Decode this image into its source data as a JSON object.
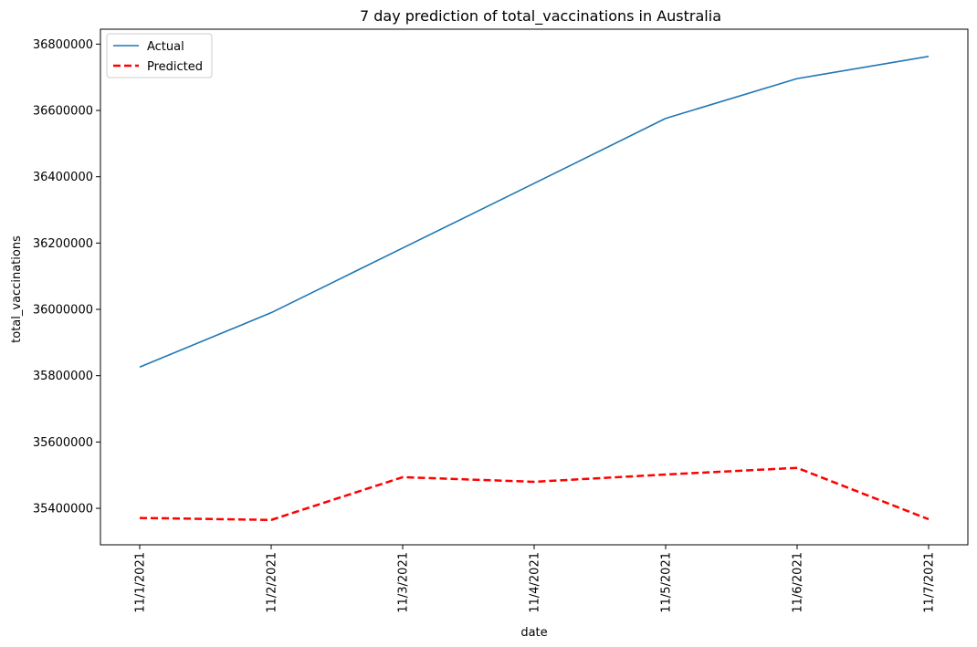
{
  "chart_data": {
    "type": "line",
    "title": "7 day prediction of total_vaccinations in Australia",
    "xlabel": "date",
    "ylabel": "total_vaccinations",
    "categories": [
      "11/1/2021",
      "11/2/2021",
      "11/3/2021",
      "11/4/2021",
      "11/5/2021",
      "11/6/2021",
      "11/7/2021"
    ],
    "yticks": [
      35400000,
      35600000,
      35800000,
      36000000,
      36200000,
      36400000,
      36600000,
      36800000
    ],
    "ylim": [
      35290000,
      36845000
    ],
    "grid": false,
    "legend_position": "top-left",
    "series": [
      {
        "name": "Actual",
        "values": [
          35826000,
          35990000,
          36185000,
          36380000,
          36576000,
          36696000,
          36763000
        ],
        "color": "#1f77b4",
        "style": "solid"
      },
      {
        "name": "Predicted",
        "values": [
          35371000,
          35365000,
          35494000,
          35480000,
          35502000,
          35522000,
          35367000
        ],
        "color": "#ff0000",
        "style": "dashed"
      }
    ]
  }
}
